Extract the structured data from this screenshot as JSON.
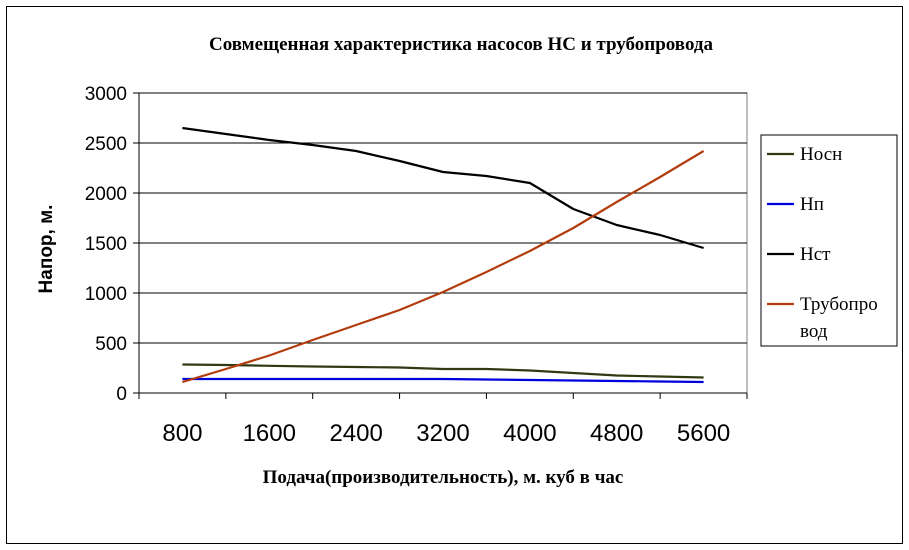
{
  "chart_data": {
    "type": "line",
    "title": "Совмещенная характеристика насосов НС и трубопровода",
    "xlabel": "Подача(производительность), м. куб в час",
    "ylabel": "Напор, м.",
    "ylim": [
      0,
      3000
    ],
    "yticks": [
      "0",
      "500",
      "1000",
      "1500",
      "2000",
      "2500",
      "3000"
    ],
    "x": [
      800,
      1200,
      1600,
      2000,
      2400,
      2800,
      3200,
      3600,
      4000,
      4400,
      4800,
      5200,
      5600
    ],
    "xticks": [
      "800",
      "1600",
      "2400",
      "3200",
      "4000",
      "4800",
      "5600"
    ],
    "grid": true,
    "legend_position": "right",
    "series": [
      {
        "name": "Носн",
        "color": "#2f3a13",
        "values": [
          285,
          280,
          272,
          265,
          260,
          255,
          240,
          240,
          225,
          200,
          175,
          165,
          155
        ]
      },
      {
        "name": "Нп",
        "color": "#0000dd",
        "values": [
          140,
          140,
          140,
          140,
          140,
          140,
          140,
          135,
          130,
          125,
          120,
          115,
          110
        ]
      },
      {
        "name": "Нст",
        "color": "#000000",
        "values": [
          2650,
          2590,
          2530,
          2480,
          2420,
          2320,
          2210,
          2170,
          2100,
          1840,
          1680,
          1580,
          1450
        ]
      },
      {
        "name": "Трубопро\nвод",
        "color": "#b23c0c",
        "values": [
          110,
          240,
          375,
          530,
          680,
          830,
          1010,
          1210,
          1420,
          1650,
          1910,
          2160,
          2420
        ]
      }
    ]
  }
}
